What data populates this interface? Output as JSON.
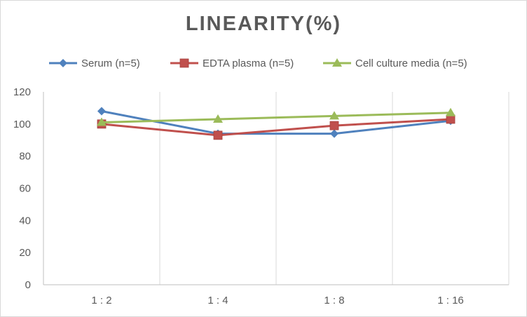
{
  "chart_data": {
    "type": "line",
    "title": "LINEARITY(%)",
    "xlabel": "",
    "ylabel": "",
    "categories": [
      "1:2",
      "1:4",
      "1:8",
      "1:16"
    ],
    "ylim": [
      0,
      120
    ],
    "yticks": [
      0,
      20,
      40,
      60,
      80,
      100,
      120
    ],
    "grid": "vertical",
    "legend_position": "top",
    "series": [
      {
        "name": "Serum (n=5)",
        "values": [
          108,
          94,
          94,
          102
        ],
        "color": "#4f81bd",
        "marker": "diamond"
      },
      {
        "name": "EDTA plasma (n=5)",
        "values": [
          100,
          93,
          99,
          103
        ],
        "color": "#c0504d",
        "marker": "square"
      },
      {
        "name": "Cell culture media (n=5)",
        "values": [
          101,
          103,
          105,
          107
        ],
        "color": "#9bbb59",
        "marker": "triangle"
      }
    ]
  }
}
